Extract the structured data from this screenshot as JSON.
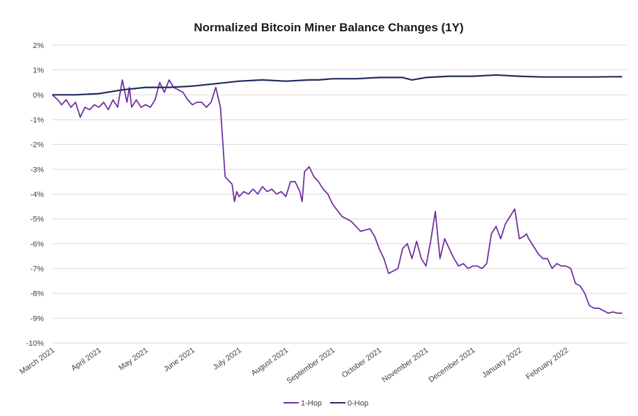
{
  "chart_data": {
    "type": "line",
    "title": "Normalized  Bitcoin Miner Balance Changes (1Y)",
    "xlabel": "",
    "ylabel": "",
    "ylim": [
      -10,
      2
    ],
    "yticks": [
      2,
      1,
      0,
      -1,
      -2,
      -3,
      -4,
      -5,
      -6,
      -7,
      -8,
      -9,
      -10
    ],
    "ytick_labels": [
      "2%",
      "1%",
      "0%",
      "-1%",
      "-2%",
      "-3%",
      "-4%",
      "-5%",
      "-6%",
      "-7%",
      "-8%",
      "-9%",
      "-10%"
    ],
    "xlim": [
      0,
      12.3
    ],
    "xticks": [
      0,
      1,
      2,
      3,
      4,
      5,
      6,
      7,
      8,
      9,
      10,
      11
    ],
    "xtick_labels": [
      "March 2021",
      "April 2021",
      "May 2021",
      "June 2021",
      "July 2021",
      "August 2021",
      "September 2021",
      "October 2021",
      "November 2021",
      "December 2021",
      "January 2022",
      "February 2022"
    ],
    "grid": true,
    "legend_position": "bottom",
    "series": [
      {
        "name": "1-Hop",
        "color": "#7030a0",
        "x": [
          0,
          0.12,
          0.2,
          0.3,
          0.4,
          0.5,
          0.6,
          0.7,
          0.8,
          0.9,
          1.0,
          1.1,
          1.2,
          1.3,
          1.4,
          1.5,
          1.6,
          1.65,
          1.7,
          1.8,
          1.9,
          2.0,
          2.1,
          2.2,
          2.3,
          2.4,
          2.5,
          2.6,
          2.7,
          2.8,
          2.9,
          3.0,
          3.1,
          3.2,
          3.3,
          3.4,
          3.5,
          3.6,
          3.7,
          3.8,
          3.85,
          3.9,
          3.95,
          4.0,
          4.1,
          4.2,
          4.3,
          4.4,
          4.5,
          4.6,
          4.7,
          4.8,
          4.9,
          5.0,
          5.1,
          5.2,
          5.3,
          5.35,
          5.4,
          5.5,
          5.6,
          5.7,
          5.8,
          5.9,
          6.0,
          6.2,
          6.4,
          6.6,
          6.8,
          6.9,
          7.0,
          7.1,
          7.2,
          7.3,
          7.4,
          7.5,
          7.6,
          7.7,
          7.8,
          7.9,
          8.0,
          8.1,
          8.2,
          8.3,
          8.4,
          8.5,
          8.6,
          8.7,
          8.8,
          8.9,
          9.0,
          9.1,
          9.2,
          9.3,
          9.4,
          9.5,
          9.6,
          9.7,
          9.8,
          9.9,
          10.0,
          10.1,
          10.15,
          10.2,
          10.3,
          10.4,
          10.5,
          10.6,
          10.7,
          10.8,
          10.9,
          11.0,
          11.1,
          11.2,
          11.3,
          11.4,
          11.5,
          11.6,
          11.7,
          11.8,
          11.9,
          12.0,
          12.1,
          12.2
        ],
        "values": [
          0,
          -0.2,
          -0.4,
          -0.2,
          -0.5,
          -0.3,
          -0.9,
          -0.5,
          -0.6,
          -0.4,
          -0.5,
          -0.3,
          -0.6,
          -0.2,
          -0.5,
          0.6,
          -0.3,
          0.3,
          -0.5,
          -0.2,
          -0.5,
          -0.4,
          -0.5,
          -0.2,
          0.5,
          0.1,
          0.6,
          0.3,
          0.2,
          0.1,
          -0.2,
          -0.4,
          -0.3,
          -0.3,
          -0.5,
          -0.3,
          0.3,
          -0.5,
          -3.3,
          -3.5,
          -3.6,
          -4.3,
          -3.9,
          -4.1,
          -3.9,
          -4.0,
          -3.8,
          -4.0,
          -3.7,
          -3.9,
          -3.8,
          -4.0,
          -3.9,
          -4.1,
          -3.5,
          -3.5,
          -3.9,
          -4.3,
          -3.1,
          -2.9,
          -3.3,
          -3.5,
          -3.8,
          -4.0,
          -4.4,
          -4.9,
          -5.1,
          -5.5,
          -5.4,
          -5.7,
          -6.2,
          -6.6,
          -7.2,
          -7.1,
          -7.0,
          -6.2,
          -6.0,
          -6.6,
          -5.9,
          -6.6,
          -6.9,
          -5.9,
          -4.7,
          -6.6,
          -5.8,
          -6.2,
          -6.6,
          -6.9,
          -6.8,
          -7.0,
          -6.9,
          -6.9,
          -7.0,
          -6.8,
          -5.6,
          -5.3,
          -5.8,
          -5.2,
          -4.9,
          -4.6,
          -5.8,
          -5.7,
          -5.6,
          -5.8,
          -6.1,
          -6.4,
          -6.6,
          -6.6,
          -7.0,
          -6.8,
          -6.9,
          -6.9,
          -7.0,
          -7.6,
          -7.7,
          -8.0,
          -8.5,
          -8.6,
          -8.6,
          -8.7,
          -8.8,
          -8.75,
          -8.8,
          -8.8
        ]
      },
      {
        "name": "0-Hop",
        "color": "#1f2a5c",
        "x": [
          0,
          0.5,
          1.0,
          1.5,
          2.0,
          2.5,
          3.0,
          3.5,
          4.0,
          4.5,
          5.0,
          5.5,
          5.7,
          6.0,
          6.5,
          7.0,
          7.5,
          7.7,
          8.0,
          8.5,
          9.0,
          9.5,
          10.0,
          10.5,
          11.0,
          11.5,
          12.0,
          12.2
        ],
        "values": [
          0.0,
          0.0,
          0.05,
          0.2,
          0.3,
          0.3,
          0.35,
          0.45,
          0.55,
          0.6,
          0.55,
          0.6,
          0.6,
          0.65,
          0.65,
          0.7,
          0.7,
          0.6,
          0.7,
          0.75,
          0.75,
          0.8,
          0.75,
          0.72,
          0.72,
          0.72,
          0.73,
          0.73
        ]
      }
    ]
  }
}
